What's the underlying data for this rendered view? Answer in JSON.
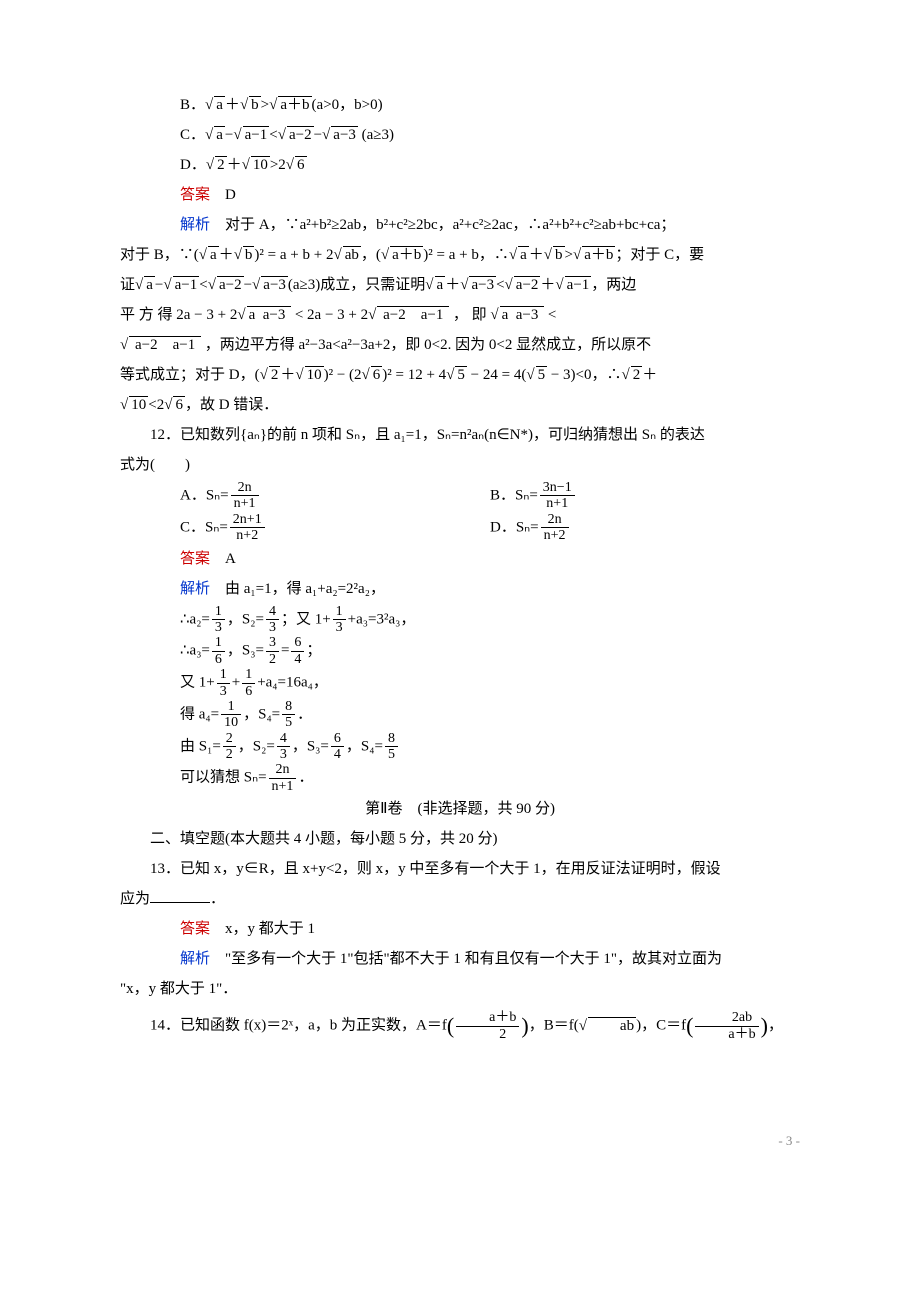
{
  "optB": "B．",
  "optB_math": "√a + √b > √(a+b) (a>0，b>0)",
  "optC": "C．",
  "optC_math": "√a − √(a−1) < √(a−2) − √(a−3) (a≥3)",
  "optD": "D．",
  "optD_math": "√2 + √10 > 2√6",
  "ans11_label": "答案",
  "ans11": "　D",
  "exp11_label": "解析",
  "exp11_s1": "　对于 A，∵a²+b²≥2ab，b²+c²≥2bc，a²+c²≥2ac，∴a²+b²+c²≥ab+bc+ca；",
  "exp11_s2a": "对于 B，∵(",
  "exp11_s2b": ")² = a + b + 2",
  "exp11_s2c": "，(",
  "exp11_s2d": ")² = a + b，∴",
  "exp11_s2e": "；对于 C，要",
  "exp11_s3a": "证",
  "exp11_s3b": "(a≥3)成立，只需证明",
  "exp11_s3c": "，两边",
  "exp11_s4a": "平 方 得  2a − 3 + 2",
  "exp11_s4b": " < 2a − 3 + 2",
  "exp11_s4c": " ， 即 ",
  "exp11_s4d": " <",
  "exp11_s5a": " ，两边平方得 a²−3a<a²−3a+2，即 0<2. 因为 0<2 显然成立，所以原不",
  "exp11_s6a": "等式成立；对于 D，(",
  "exp11_s6b": ")² − (2",
  "exp11_s6c": ")² = 12 + 4",
  "exp11_s6d": " − 24 = 4(",
  "exp11_s6e": " − 3)<0，∴",
  "exp11_s7a": "<2",
  "exp11_s7b": "，故 D 错误．",
  "q12_a": "12．已知数列{aₙ}的前 n 项和 Sₙ，且 a₁=1，Sₙ=n²aₙ(n∈N*)，可归纳猜想出 Sₙ 的表达",
  "q12_b": "式为(　　)",
  "q12A": "A．Sₙ=",
  "q12A_num": "2n",
  "q12A_den": "n+1",
  "q12B": "B．Sₙ=",
  "q12B_num": "3n−1",
  "q12B_den": "n+1",
  "q12C": "C．Sₙ=",
  "q12C_num": "2n+1",
  "q12C_den": "n+2",
  "q12D": "D．Sₙ=",
  "q12D_num": "2n",
  "q12D_den": "n+2",
  "ans12_label": "答案",
  "ans12": "　A",
  "exp12_label": "解析",
  "exp12_l1": "　由 a₁=1，得 a₁+a₂=2²a₂，",
  "exp12_l2a": "∴a₂=",
  "exp12_l2b": "，S₂=",
  "exp12_l2c": "；又 1+",
  "exp12_l2d": "+a₃=3²a₃，",
  "exp12_l3a": "∴a₃=",
  "exp12_l3b": "，S₃=",
  "exp12_l3c": "=",
  "exp12_l3d": "；",
  "exp12_l4a": "又 1+",
  "exp12_l4b": "+",
  "exp12_l4c": "+a₄=16a₄，",
  "exp12_l5a": "得 a₄=",
  "exp12_l5b": "，S₄=",
  "exp12_l5c": "．",
  "exp12_l6a": "由 S₁=",
  "exp12_l6b": "，S₂=",
  "exp12_l6c": "，S₃=",
  "exp12_l6d": "，S₄=",
  "exp12_l7a": "可以猜想 Sₙ=",
  "exp12_l7b": "．",
  "section2_title": "第Ⅱ卷　(非选择题，共 90 分)",
  "section2_sub": "二、填空题(本大题共 4 小题，每小题 5 分，共 20 分)",
  "q13_a": "13．已知 x，y∈R，且 x+y<2，则 x，y 中至多有一个大于 1，在用反证法证明时，假设",
  "q13_b": "应为",
  "q13_c": "．",
  "ans13_label": "答案",
  "ans13": "　x，y 都大于 1",
  "exp13_label": "解析",
  "exp13_a": "　\"至多有一个大于 1\"包括\"都不大于 1 和有且仅有一个大于 1\"，故其对立面为",
  "exp13_b": "\"x，y 都大于 1\"．",
  "q14_a": "14．已知函数 f(x)＝2ˣ，a，b 为正实数，A＝f",
  "q14_b": "，B＝f(",
  "q14_c": ")，C＝f",
  "q14_d": "，",
  "frac_1_3_n": "1",
  "frac_1_3_d": "3",
  "frac_4_3_n": "4",
  "frac_4_3_d": "3",
  "frac_1_6_n": "1",
  "frac_1_6_d": "6",
  "frac_3_2_n": "3",
  "frac_3_2_d": "2",
  "frac_6_4_n": "6",
  "frac_6_4_d": "4",
  "frac_1_10_n": "1",
  "frac_1_10_d": "10",
  "frac_8_5_n": "8",
  "frac_8_5_d": "5",
  "frac_2_2_n": "2",
  "frac_2_2_d": "2",
  "frac_2n_n1_n": "2n",
  "frac_2n_n1_d": "n+1",
  "frac_ab2_n": "a＋b",
  "frac_ab2_d": "2",
  "frac_2ab_n": "2ab",
  "frac_2ab_d": "a＋b",
  "page_num": "- 3 -"
}
